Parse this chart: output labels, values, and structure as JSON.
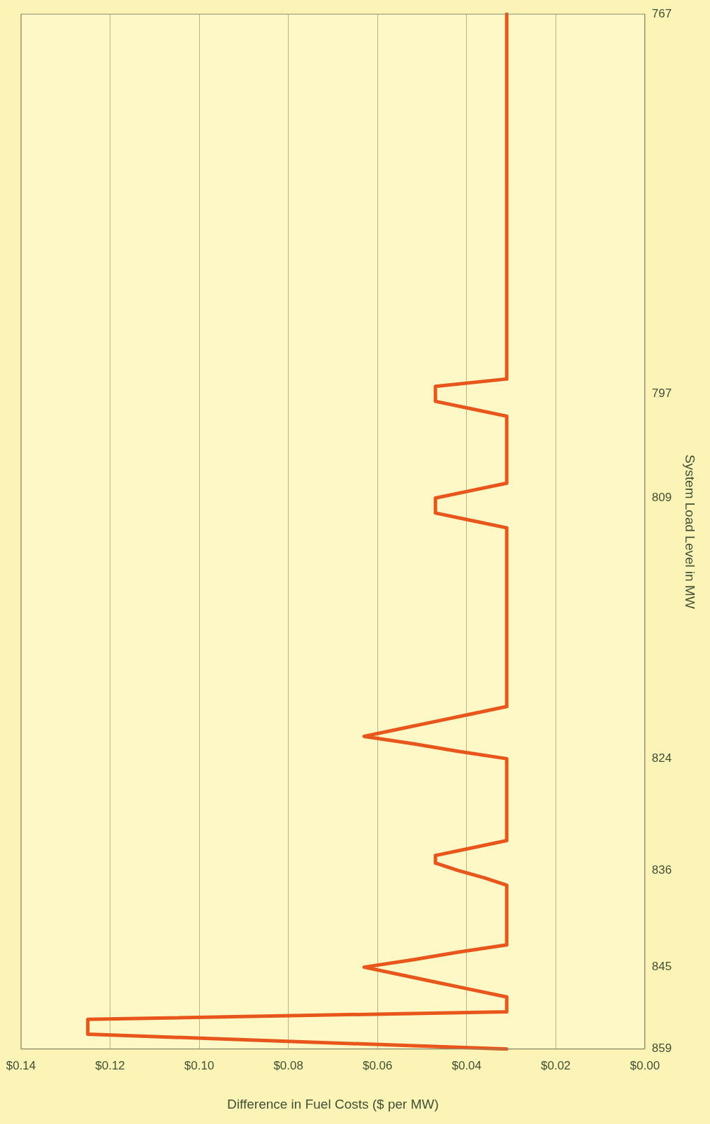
{
  "chart_data": {
    "type": "line",
    "orientation": "horizontal",
    "ylabel": "System Load Level in MW",
    "xlabel": "Difference in Fuel Costs ($ per MW)",
    "categories": [
      "767",
      null,
      null,
      null,
      null,
      null,
      null,
      null,
      null,
      null,
      null,
      null,
      null,
      null,
      null,
      null,
      null,
      null,
      null,
      null,
      null,
      null,
      null,
      null,
      null,
      null,
      null,
      null,
      null,
      null,
      null,
      null,
      null,
      null,
      null,
      null,
      null,
      null,
      null,
      null,
      null,
      null,
      null,
      null,
      null,
      null,
      null,
      null,
      null,
      null,
      null,
      "797",
      null,
      null,
      null,
      null,
      null,
      null,
      null,
      null,
      null,
      null,
      null,
      null,
      null,
      "809",
      null,
      null,
      null,
      null,
      null,
      null,
      null,
      null,
      null,
      null,
      null,
      null,
      null,
      null,
      null,
      null,
      null,
      null,
      null,
      null,
      null,
      null,
      null,
      null,
      null,
      null,
      null,
      null,
      null,
      null,
      null,
      null,
      null,
      null,
      "824",
      null,
      null,
      null,
      null,
      null,
      null,
      null,
      null,
      null,
      null,
      null,
      null,
      null,
      null,
      "836",
      null,
      null,
      null,
      null,
      null,
      null,
      null,
      null,
      null,
      null,
      null,
      null,
      "845",
      null,
      null,
      null,
      null,
      null,
      null,
      null,
      null,
      null,
      null,
      "859"
    ],
    "series": [
      {
        "color": "#e8561c",
        "values": [
          0.031,
          0.031,
          0.031,
          0.031,
          0.031,
          0.031,
          0.031,
          0.031,
          0.031,
          0.031,
          0.031,
          0.031,
          0.031,
          0.031,
          0.031,
          0.031,
          0.031,
          0.031,
          0.031,
          0.031,
          0.031,
          0.031,
          0.031,
          0.031,
          0.031,
          0.031,
          0.031,
          0.031,
          0.031,
          0.031,
          0.031,
          0.031,
          0.031,
          0.031,
          0.031,
          0.031,
          0.031,
          0.031,
          0.031,
          0.031,
          0.031,
          0.031,
          0.031,
          0.031,
          0.031,
          0.031,
          0.031,
          0.031,
          0.031,
          0.031,
          0.047,
          0.047,
          0.047,
          0.039,
          0.031,
          0.031,
          0.031,
          0.031,
          0.031,
          0.031,
          0.031,
          0.031,
          0.031,
          0.031,
          0.039,
          0.047,
          0.047,
          0.047,
          0.039,
          0.031,
          0.031,
          0.031,
          0.031,
          0.031,
          0.031,
          0.031,
          0.031,
          0.031,
          0.031,
          0.031,
          0.031,
          0.031,
          0.031,
          0.031,
          0.031,
          0.031,
          0.031,
          0.031,
          0.031,
          0.031,
          0.031,
          0.031,
          0.031,
          0.031,
          0.039,
          0.047,
          0.055,
          0.063,
          0.052,
          0.042,
          0.031,
          0.031,
          0.031,
          0.031,
          0.031,
          0.031,
          0.031,
          0.031,
          0.031,
          0.031,
          0.031,
          0.031,
          0.039,
          0.047,
          0.047,
          0.042,
          0.036,
          0.031,
          0.031,
          0.031,
          0.031,
          0.031,
          0.031,
          0.031,
          0.031,
          0.031,
          0.042,
          0.052,
          0.063,
          0.055,
          0.047,
          0.039,
          0.031,
          0.031,
          0.031,
          0.125,
          0.125,
          0.125,
          0.078,
          0.031
        ]
      }
    ],
    "xlim": [
      0.14,
      0
    ],
    "xticks": [
      {
        "value": 0,
        "label": "$0.00"
      },
      {
        "value": 0.02,
        "label": "$0.02"
      },
      {
        "value": 0.04,
        "label": "$0.04"
      },
      {
        "value": 0.06,
        "label": "$0.06"
      },
      {
        "value": 0.08,
        "label": "$0.08"
      },
      {
        "value": 0.1,
        "label": "$0.10"
      },
      {
        "value": 0.12,
        "label": "$0.12"
      },
      {
        "value": 0.14,
        "label": "$0.14"
      }
    ],
    "grid": "x",
    "marker": "none",
    "legend": false
  }
}
